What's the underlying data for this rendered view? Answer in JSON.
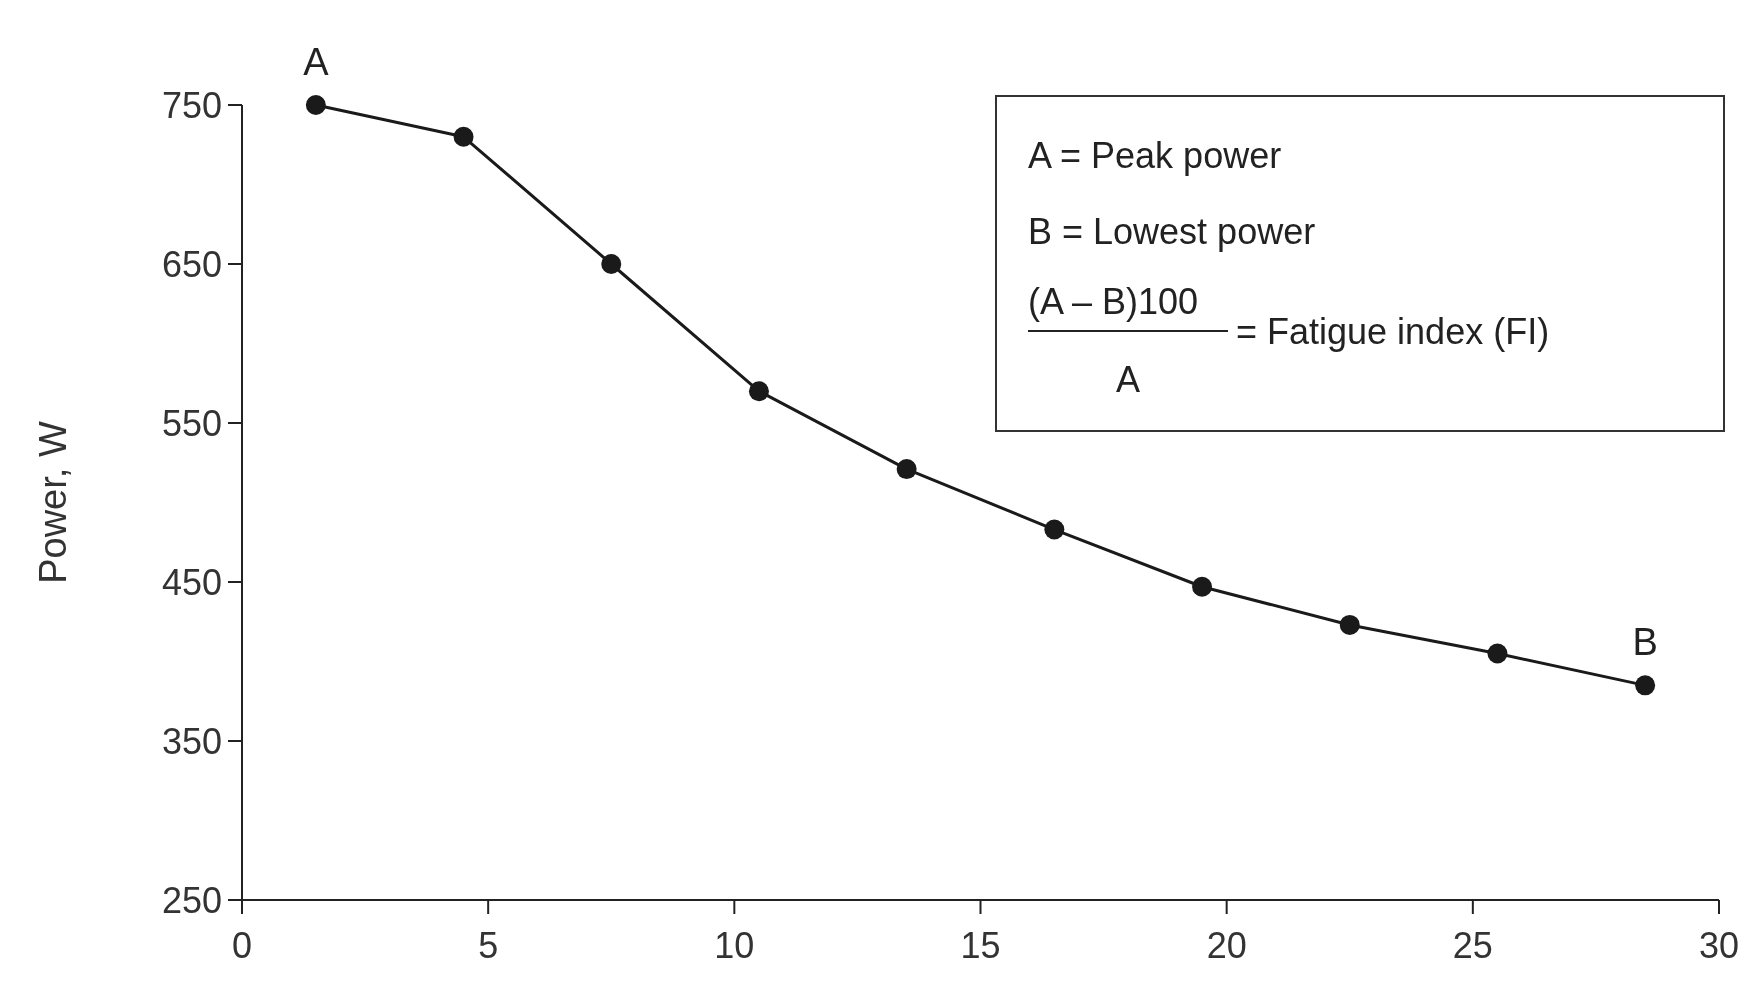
{
  "chart_data": {
    "type": "line",
    "ylabel": "Power, W",
    "x": [
      1.5,
      4.5,
      7.5,
      10.5,
      13.5,
      16.5,
      19.5,
      22.5,
      25.5,
      28.5
    ],
    "series": [
      {
        "color": "#1a1a1a",
        "values": [
          750,
          730,
          650,
          570,
          521,
          483,
          447,
          423,
          405,
          385
        ]
      }
    ],
    "xlim": [
      0,
      30
    ],
    "xticks": [
      0,
      5,
      10,
      15,
      20,
      25,
      30
    ],
    "ylim": [
      250,
      750
    ],
    "yticks": [
      250,
      350,
      450,
      550,
      650,
      750
    ],
    "marker": "circle",
    "line_style": "solid",
    "grid": false,
    "annotations": [
      {
        "text": "A",
        "x": 1.5,
        "y": 750
      },
      {
        "text": "B",
        "x": 28.5,
        "y": 385
      },
      "A = Peak power",
      "B = Lowest power",
      "(A – B)100",
      "A",
      "= Fatigue index (FI)"
    ]
  }
}
